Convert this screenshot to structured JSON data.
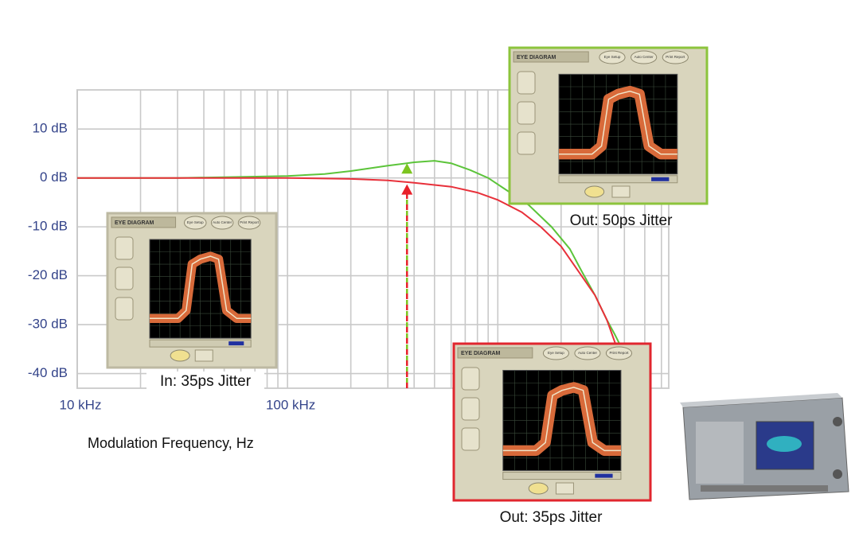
{
  "chart_data": {
    "type": "line",
    "x_label": "Modulation Frequency, Hz",
    "xscale": "log",
    "xlim": [
      10000,
      6500000
    ],
    "xticks": [
      {
        "value": 10000,
        "label": "10 kHz"
      },
      {
        "value": 100000,
        "label": "100 kHz"
      }
    ],
    "x_minor_grid": [
      20000,
      30000,
      40000,
      50000,
      60000,
      70000,
      80000,
      90000,
      200000,
      300000,
      400000,
      500000,
      600000,
      700000,
      800000,
      900000,
      1000000,
      2000000,
      3000000,
      4000000,
      5000000,
      6000000
    ],
    "ylim": [
      -43,
      18
    ],
    "yticks": [
      {
        "value": 10,
        "label": "10 dB"
      },
      {
        "value": 0,
        "label": "0 dB"
      },
      {
        "value": -10,
        "label": "-10 dB"
      },
      {
        "value": -20,
        "label": "-20 dB"
      },
      {
        "value": -30,
        "label": "-30 dB"
      },
      {
        "value": -40,
        "label": "-40 dB"
      }
    ],
    "grid": true,
    "series": [
      {
        "name": "Out: 50ps Jitter",
        "color": "#5cc43a",
        "x": [
          10000,
          30000,
          60000,
          100000,
          150000,
          200000,
          300000,
          400000,
          500000,
          600000,
          740000,
          900000,
          1100000,
          1400000,
          1800000,
          2200000,
          2500000,
          2900000,
          3300000,
          3600000,
          3800000
        ],
        "values": [
          0,
          0,
          0.2,
          0.4,
          0.8,
          1.4,
          2.5,
          3.2,
          3.5,
          3,
          1.6,
          0,
          -2.5,
          -5.5,
          -10,
          -14.5,
          -19,
          -24,
          -29,
          -32,
          -34
        ]
      },
      {
        "name": "Out: 35ps Jitter",
        "color": "#e8303a",
        "x": [
          10000,
          30000,
          60000,
          100000,
          200000,
          300000,
          400000,
          600000,
          800000,
          1000000,
          1300000,
          1600000,
          2000000,
          2500000,
          2900000,
          3300000,
          3700000,
          4000000
        ],
        "values": [
          0,
          0,
          0,
          0,
          -0.2,
          -0.5,
          -1,
          -1.8,
          -3,
          -4.5,
          -7,
          -10,
          -14,
          -20,
          -24,
          -29,
          -35,
          -42
        ]
      }
    ],
    "marker_x": 370000,
    "markers": [
      {
        "color": "#7cc520",
        "value": 3
      },
      {
        "color": "#e8202a",
        "value": -1.3
      }
    ],
    "panels": [
      {
        "caption": "In: 35ps Jitter",
        "border": "#bdb9a2"
      },
      {
        "caption": "Out: 50ps Jitter",
        "border": "#8cc43c"
      },
      {
        "caption": "Out: 35ps Jitter",
        "border": "#e0262e"
      }
    ],
    "panel_title": "EYE DIAGRAM",
    "panel_buttons": [
      "Eye Setup",
      "Auto Center",
      "Print Report"
    ]
  }
}
